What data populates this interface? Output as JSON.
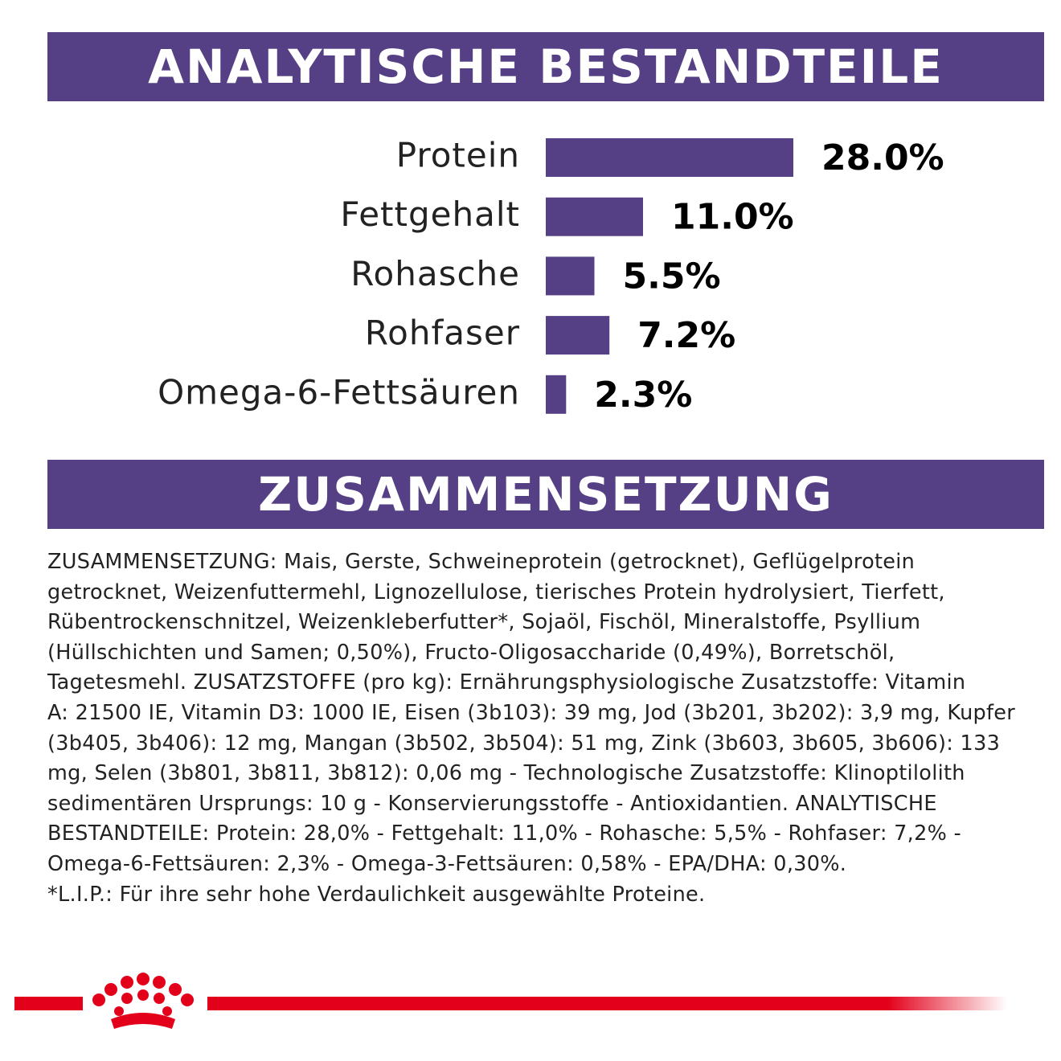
{
  "chart_data": {
    "type": "bar",
    "orientation": "horizontal",
    "title": "ANALYTISCHE BESTANDTEILE",
    "categories": [
      "Protein",
      "Fettgehalt",
      "Rohasche",
      "Rohfaser",
      "Omega-6-Fettsäuren"
    ],
    "values": [
      28.0,
      11.0,
      5.5,
      7.2,
      2.3
    ],
    "value_labels": [
      "28.0%",
      "11.0%",
      "5.5%",
      "7.2%",
      "2.3%"
    ],
    "color": "#553f85"
  },
  "composition": {
    "title": "ZUSAMMENSETZUNG",
    "lines": [
      "ZUSAMMENSETZUNG: Mais, Gerste, Schweineprotein (getrocknet), Geflügelprotein",
      "getrocknet, Weizenfuttermehl, Lignozellulose, tierisches Protein hydrolysiert, Tierfett,",
      "Rübentrockenschnitzel, Weizenkleberfutter*, Sojaöl, Fischöl, Mineralstoffe, Psyllium",
      "(Hüllschichten und Samen; 0,50%), Fructo-Oligosaccharide (0,49%), Borretschöl,",
      "Tagetesmehl. ZUSATZSTOFFE (pro kg): Ernährungsphysiologische Zusatzstoffe: Vitamin",
      "A: 21500 IE, Vitamin D3: 1000 IE, Eisen (3b103): 39 mg, Jod (3b201, 3b202): 3,9 mg, Kupfer",
      "(3b405, 3b406): 12 mg, Mangan (3b502, 3b504): 51 mg, Zink (3b603, 3b605, 3b606): 133",
      "mg, Selen (3b801, 3b811, 3b812): 0,06 mg - Technologische Zusatzstoffe: Klinoptilolith",
      "sedimentären Ursprungs: 10 g - Konservierungsstoffe - Antioxidantien. ANALYTISCHE",
      "BESTANDTEILE: Protein: 28,0% - Fettgehalt: 11,0% - Rohasche: 5,5% - Rohfaser: 7,2% -",
      "Omega-6-Fettsäuren: 2,3% - Omega-3-Fettsäuren: 0,58% - EPA/DHA: 0,30%.",
      "*L.I.P.: Für ihre sehr hohe Verdaulichkeit ausgewählte Proteine."
    ]
  }
}
